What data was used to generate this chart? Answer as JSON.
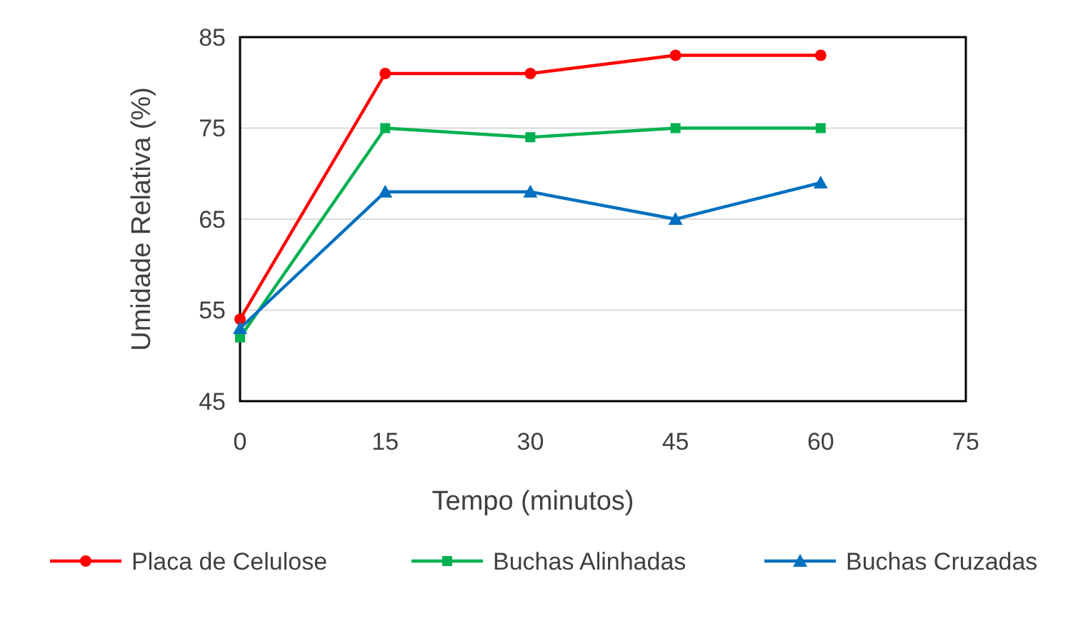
{
  "chart_data": {
    "type": "line",
    "xlabel": "Tempo (minutos)",
    "ylabel": "Umidade Relativa (%)",
    "x": [
      0,
      15,
      30,
      45,
      60
    ],
    "xlim": [
      0,
      75
    ],
    "xticks": [
      0,
      15,
      30,
      45,
      60,
      75
    ],
    "ylim": [
      45,
      85
    ],
    "yticks": [
      45,
      55,
      65,
      75,
      85
    ],
    "grid": "y",
    "legend": "bottom",
    "line_style": "solid",
    "series": [
      {
        "name": "Placa de Celulose",
        "color": "#ff0000",
        "marker": "circle",
        "values": [
          54,
          81,
          81,
          83,
          83
        ]
      },
      {
        "name": "Buchas Alinhadas",
        "color": "#00b050",
        "marker": "square",
        "values": [
          52,
          75,
          74,
          75,
          75
        ]
      },
      {
        "name": "Buchas Cruzadas",
        "color": "#0070c0",
        "marker": "triangle",
        "values": [
          53,
          68,
          68,
          65,
          69
        ]
      }
    ]
  }
}
